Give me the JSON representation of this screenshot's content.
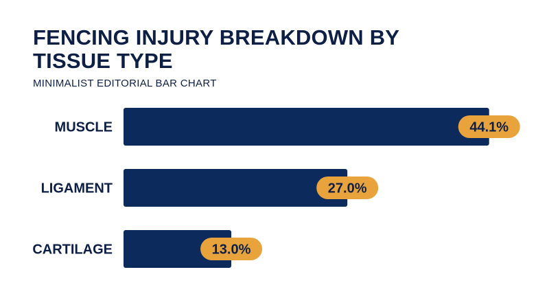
{
  "chart_data": {
    "type": "bar",
    "orientation": "horizontal",
    "title": "FENCING INJURY BREAKDOWN BY TISSUE TYPE",
    "subtitle": "MINIMALIST EDITORIAL BAR CHART",
    "categories": [
      "MUSCLE",
      "LIGAMENT",
      "CARTILAGE"
    ],
    "values": [
      44.1,
      27.0,
      13.0
    ],
    "value_labels": [
      "44.1%",
      "27.0%",
      "13.0%"
    ],
    "xlim": [
      0,
      50
    ],
    "grid": false,
    "legend": "none",
    "colors": {
      "bar": "#0d2a5c",
      "badge": "#e8a33d",
      "text": "#0d1f45"
    }
  }
}
